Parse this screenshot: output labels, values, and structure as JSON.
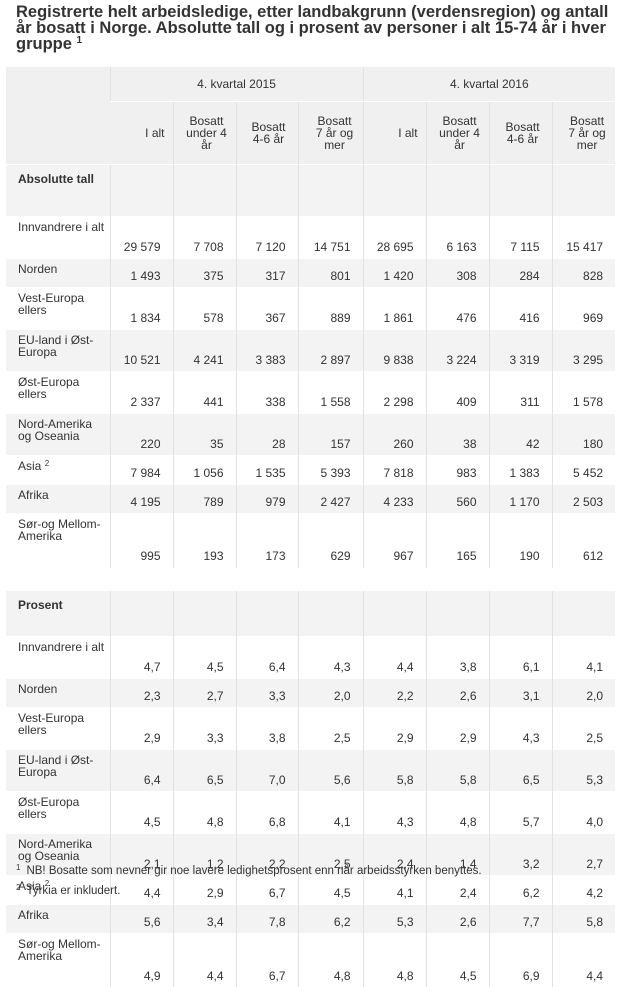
{
  "title": "Registrerte helt arbeidsledige, etter landbakgrunn (verdensregion) og antall år bosatt i Norge. Absolutte tall og i prosent av personer i alt 15-74 år i hver gruppe",
  "title_note": "1",
  "period_headers": [
    "4. kvartal 2015",
    "4. kvartal 2016"
  ],
  "column_headers": [
    "I alt",
    "Bosatt under 4 år",
    "Bosatt 4-6 år",
    "Bosatt 7 år og mer",
    "I alt",
    "Bosatt under 4 år",
    "Bosatt 4-6 år",
    "Bosatt 7 år og mer"
  ],
  "sections": [
    {
      "heading": "Absolutte tall",
      "rows": [
        {
          "label": "Innvandrere i alt",
          "note": "",
          "values": [
            "29 579",
            "7 708",
            "7 120",
            "14 751",
            "28 695",
            "6 163",
            "7 115",
            "15 417"
          ]
        },
        {
          "label": "Norden",
          "note": "",
          "values": [
            "1 493",
            "375",
            "317",
            "801",
            "1 420",
            "308",
            "284",
            "828"
          ]
        },
        {
          "label": "Vest-Europa ellers",
          "note": "",
          "values": [
            "1 834",
            "578",
            "367",
            "889",
            "1 861",
            "476",
            "416",
            "969"
          ]
        },
        {
          "label": "EU-land i Øst-Europa",
          "note": "",
          "values": [
            "10 521",
            "4 241",
            "3 383",
            "2 897",
            "9 838",
            "3 224",
            "3 319",
            "3 295"
          ]
        },
        {
          "label": "Øst-Europa ellers",
          "note": "",
          "values": [
            "2 337",
            "441",
            "338",
            "1 558",
            "2 298",
            "409",
            "311",
            "1 578"
          ]
        },
        {
          "label": "Nord-Amerika og Oseania",
          "note": "",
          "values": [
            "220",
            "35",
            "28",
            "157",
            "260",
            "38",
            "42",
            "180"
          ]
        },
        {
          "label": "Asia",
          "note": "2",
          "values": [
            "7 984",
            "1 056",
            "1 535",
            "5 393",
            "7 818",
            "983",
            "1 383",
            "5 452"
          ]
        },
        {
          "label": "Afrika",
          "note": "",
          "values": [
            "4 195",
            "789",
            "979",
            "2 427",
            "4 233",
            "560",
            "1 170",
            "2 503"
          ]
        },
        {
          "label": "Sør-og Mellom-Amerika",
          "note": "",
          "values": [
            "995",
            "193",
            "173",
            "629",
            "967",
            "165",
            "190",
            "612"
          ]
        }
      ]
    },
    {
      "heading": "Prosent",
      "rows": [
        {
          "label": "Innvandrere i alt",
          "note": "",
          "values": [
            "4,7",
            "4,5",
            "6,4",
            "4,3",
            "4,4",
            "3,8",
            "6,1",
            "4,1"
          ]
        },
        {
          "label": "Norden",
          "note": "",
          "values": [
            "2,3",
            "2,7",
            "3,3",
            "2,0",
            "2,2",
            "2,6",
            "3,1",
            "2,0"
          ]
        },
        {
          "label": "Vest-Europa ellers",
          "note": "",
          "values": [
            "2,9",
            "3,3",
            "3,8",
            "2,5",
            "2,9",
            "2,9",
            "4,3",
            "2,5"
          ]
        },
        {
          "label": "EU-land i Øst-Europa",
          "note": "",
          "values": [
            "6,4",
            "6,5",
            "7,0",
            "5,6",
            "5,8",
            "5,8",
            "6,5",
            "5,3"
          ]
        },
        {
          "label": "Øst-Europa ellers",
          "note": "",
          "values": [
            "4,5",
            "4,8",
            "6,8",
            "4,1",
            "4,3",
            "4,8",
            "5,7",
            "4,0"
          ]
        },
        {
          "label": "Nord-Amerika og Oseania",
          "note": "",
          "values": [
            "2,1",
            "1,2",
            "2,2",
            "2,5",
            "2,4",
            "1,4",
            "3,2",
            "2,7"
          ]
        },
        {
          "label": "Asia",
          "note": "2",
          "values": [
            "4,4",
            "2,9",
            "6,7",
            "4,5",
            "4,1",
            "2,4",
            "6,2",
            "4,2"
          ]
        },
        {
          "label": "Afrika",
          "note": "",
          "values": [
            "5,6",
            "3,4",
            "7,8",
            "6,2",
            "5,3",
            "2,6",
            "7,7",
            "5,8"
          ]
        },
        {
          "label": "Sør-og Mellom-Amerika",
          "note": "",
          "values": [
            "4,9",
            "4,4",
            "6,7",
            "4,8",
            "4,8",
            "4,5",
            "6,9",
            "4,4"
          ]
        }
      ]
    }
  ],
  "footnotes": [
    {
      "mark": "1",
      "text": "NB! Bosatte som nevner gir noe lavere ledighetsprosent enn når arbeidsstyrken benyttes."
    },
    {
      "mark": "2",
      "text": "Tyrkia er inkludert."
    }
  ]
}
